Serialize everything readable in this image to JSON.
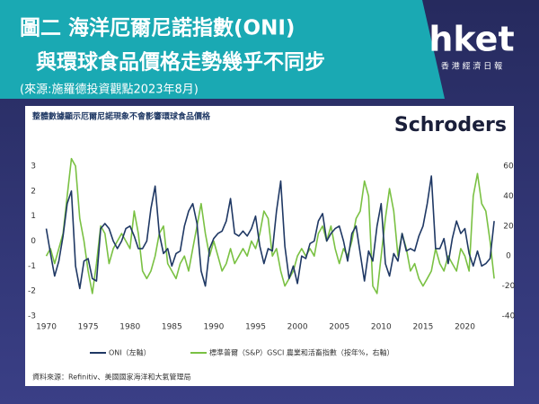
{
  "header": {
    "title_lines": [
      "圖二 海洋厄爾尼諾指數(ONI)",
      "與環球食品價格走勢幾乎不同步"
    ],
    "subtitle": "(來源:施羅德投資觀點2023年8月)",
    "logo": "hket",
    "logo_sub": "香 港 經 濟 日 報"
  },
  "chart_data": {
    "type": "line",
    "title": "整體數據顯示厄爾尼諾現象不會影響環球食品價格",
    "brand": "Schroders",
    "x": [
      1970,
      1970.5,
      1971,
      1971.5,
      1972,
      1972.5,
      1973,
      1973.5,
      1974,
      1974.5,
      1975,
      1975.5,
      1976,
      1976.5,
      1977,
      1977.5,
      1978,
      1978.5,
      1979,
      1979.5,
      1980,
      1980.5,
      1981,
      1981.5,
      1982,
      1982.5,
      1983,
      1983.5,
      1984,
      1984.5,
      1985,
      1985.5,
      1986,
      1986.5,
      1987,
      1987.5,
      1988,
      1988.5,
      1989,
      1989.5,
      1990,
      1990.5,
      1991,
      1991.5,
      1992,
      1992.5,
      1993,
      1993.5,
      1994,
      1994.5,
      1995,
      1995.5,
      1996,
      1996.5,
      1997,
      1997.5,
      1998,
      1998.5,
      1999,
      1999.5,
      2000,
      2000.5,
      2001,
      2001.5,
      2002,
      2002.5,
      2003,
      2003.5,
      2004,
      2004.5,
      2005,
      2005.5,
      2006,
      2006.5,
      2007,
      2007.5,
      2008,
      2008.5,
      2009,
      2009.5,
      2010,
      2010.5,
      2011,
      2011.5,
      2012,
      2012.5,
      2013,
      2013.5,
      2014,
      2014.5,
      2015,
      2015.5,
      2016,
      2016.5,
      2017,
      2017.5,
      2018,
      2018.5,
      2019,
      2019.5,
      2020,
      2020.5,
      2021,
      2021.5,
      2022,
      2022.5,
      2023,
      2023.5
    ],
    "series": [
      {
        "name": "ONI（左軸）",
        "color": "#1f3864",
        "axis": "y",
        "values": [
          0.5,
          -0.5,
          -1.4,
          -0.8,
          0.2,
          1.5,
          2.0,
          -1.0,
          -1.9,
          -0.8,
          -0.7,
          -1.5,
          -1.6,
          0.5,
          0.7,
          0.5,
          0.0,
          -0.3,
          0.0,
          0.5,
          0.6,
          0.2,
          -0.3,
          -0.3,
          0.0,
          1.3,
          2.2,
          0.3,
          -0.5,
          -0.3,
          -1.0,
          -0.5,
          -0.4,
          0.6,
          1.2,
          1.5,
          0.7,
          -1.2,
          -1.8,
          -0.3,
          0.1,
          0.3,
          0.4,
          0.8,
          1.7,
          0.3,
          0.2,
          0.4,
          0.2,
          0.5,
          1.0,
          -0.2,
          -0.9,
          -0.3,
          -0.4,
          1.2,
          2.4,
          -0.2,
          -1.5,
          -1.0,
          -1.7,
          -0.6,
          -0.7,
          -0.1,
          0.0,
          0.8,
          1.1,
          0.0,
          0.3,
          0.5,
          0.6,
          0.0,
          -0.8,
          0.3,
          0.6,
          -0.5,
          -1.6,
          -0.4,
          -0.8,
          0.6,
          1.5,
          -0.9,
          -1.4,
          -0.5,
          -0.8,
          0.3,
          -0.4,
          -0.3,
          -0.4,
          0.2,
          0.6,
          1.5,
          2.6,
          -0.3,
          -0.3,
          0.1,
          -0.9,
          0.1,
          0.8,
          0.3,
          0.5,
          -0.5,
          -1.0,
          -0.4,
          -1.0,
          -0.9,
          -0.7,
          0.8
        ]
      },
      {
        "name": "標準普爾（S&P）GSCI 農業和活畜指數（按年%，右軸）",
        "color": "#7ac143",
        "axis": "y2",
        "values": [
          0,
          5,
          -5,
          5,
          15,
          40,
          65,
          60,
          25,
          10,
          -10,
          -25,
          -5,
          20,
          15,
          -5,
          5,
          10,
          15,
          10,
          5,
          30,
          15,
          -10,
          -15,
          -10,
          0,
          15,
          20,
          -5,
          -10,
          -15,
          -5,
          0,
          -10,
          5,
          20,
          35,
          15,
          0,
          10,
          0,
          -10,
          -5,
          5,
          -5,
          0,
          5,
          0,
          10,
          5,
          15,
          30,
          25,
          0,
          5,
          -10,
          -20,
          -15,
          -10,
          0,
          5,
          0,
          5,
          0,
          15,
          20,
          10,
          20,
          5,
          -5,
          5,
          0,
          10,
          25,
          30,
          50,
          40,
          -20,
          -25,
          0,
          25,
          45,
          30,
          0,
          15,
          5,
          -10,
          -5,
          -15,
          -20,
          -15,
          -10,
          5,
          -5,
          -10,
          0,
          -5,
          -10,
          5,
          0,
          -10,
          40,
          55,
          35,
          30,
          10,
          -15
        ]
      }
    ],
    "xlim": [
      1969.3,
      2023.7
    ],
    "xticks": [
      1970,
      1975,
      1980,
      1985,
      1990,
      1995,
      2000,
      2005,
      2010,
      2015,
      2020
    ],
    "ylim": [
      -3,
      3
    ],
    "yticks": [
      3,
      2,
      1,
      0,
      -1,
      -2,
      -3
    ],
    "y2lim": [
      -40,
      60
    ],
    "y2ticks": [
      60,
      40,
      20,
      0,
      -20,
      -40
    ],
    "source": "資料來源：Refinitiv、美國國家海洋和大氣管理局"
  }
}
